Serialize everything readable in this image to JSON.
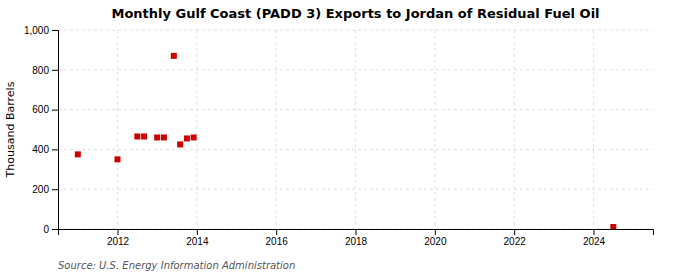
{
  "chart_data": {
    "type": "scatter",
    "title": "Monthly Gulf Coast (PADD 3) Exports to Jordan of Residual Fuel Oil",
    "y_label": "Thousand Barrels",
    "source": "Source: U.S. Energy Information Administration",
    "x": [
      2011.0,
      2012.0,
      2012.5,
      2012.67,
      2013.0,
      2013.17,
      2013.42,
      2013.58,
      2013.75,
      2013.92,
      2024.5
    ],
    "values": [
      375,
      350,
      465,
      465,
      460,
      460,
      870,
      425,
      455,
      460,
      10
    ],
    "color": "#cc0000",
    "marker": "square",
    "xlim": [
      2010.5,
      2025.5
    ],
    "ylim": [
      0,
      1000
    ],
    "xticks": [
      2012,
      2014,
      2016,
      2018,
      2020,
      2022,
      2024
    ],
    "yticks": [
      0,
      200,
      400,
      600,
      800,
      {
        "value": 1000,
        "label": "1,000"
      }
    ],
    "grid": true
  }
}
